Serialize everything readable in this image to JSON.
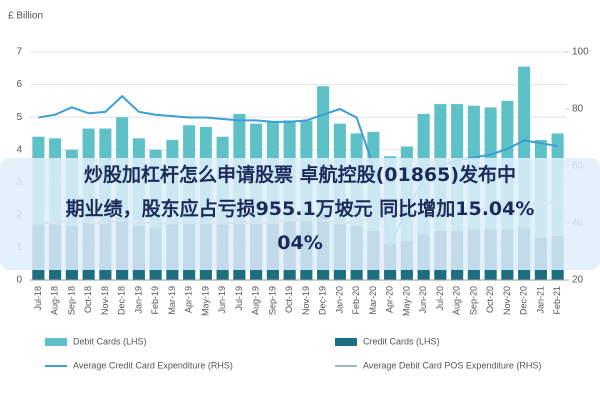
{
  "chart_data": {
    "type": "bar",
    "y_label": "£ Billion",
    "categories": [
      "Jul-18",
      "Aug-18",
      "Sep-18",
      "Oct-18",
      "Nov-18",
      "Dec-18",
      "Jan-19",
      "Feb-19",
      "Mar-19",
      "Apr-19",
      "May-19",
      "Jun-19",
      "Jul-19",
      "Aug-19",
      "Sep-19",
      "Oct-19",
      "Nov-19",
      "Dec-19",
      "Jan-20",
      "Feb-20",
      "Mar-20",
      "Apr-20",
      "May-20",
      "Jun-20",
      "Jul-20",
      "Aug-20",
      "Sep-20",
      "Oct-20",
      "Nov-20",
      "Dec-20",
      "Jan-21",
      "Feb-21"
    ],
    "series": [
      {
        "name": "Debit Cards (LHS)",
        "type": "bar",
        "color": "#5fc1c8",
        "values": [
          4.4,
          4.35,
          4.0,
          4.65,
          4.65,
          5.0,
          4.35,
          4.0,
          4.3,
          4.75,
          4.7,
          4.4,
          5.1,
          4.8,
          4.85,
          4.9,
          4.9,
          5.95,
          4.8,
          4.5,
          4.55,
          3.8,
          4.1,
          5.1,
          5.4,
          5.4,
          5.35,
          5.3,
          5.5,
          6.55,
          4.3,
          4.5
        ]
      },
      {
        "name": "Credit Cards (LHS)",
        "type": "bar",
        "color": "#1e6e82",
        "values": [
          1.7,
          1.7,
          1.65,
          1.75,
          1.75,
          1.9,
          1.65,
          1.6,
          1.7,
          1.75,
          1.75,
          1.7,
          1.8,
          1.75,
          1.75,
          1.8,
          1.8,
          2.0,
          1.7,
          1.65,
          1.5,
          1.1,
          1.2,
          1.4,
          1.5,
          1.5,
          1.55,
          1.55,
          1.55,
          1.6,
          1.3,
          1.35
        ]
      },
      {
        "name": "Average Credit Card Expenditure (RHS)",
        "type": "line",
        "axis": "y2",
        "color": "#3a9fd6",
        "values": [
          77,
          78,
          80.6,
          78.5,
          79,
          84.5,
          79,
          78,
          77.5,
          77,
          77,
          76.5,
          76,
          76,
          75.5,
          75.5,
          76,
          78,
          80,
          77,
          60,
          32,
          45,
          55,
          60,
          62,
          63,
          64,
          66,
          69,
          68,
          67
        ]
      },
      {
        "name": "Average Debit Card POS Expenditure (RHS)",
        "type": "line",
        "axis": "y2",
        "color": "#9fb3bb",
        "values": [
          40,
          40,
          41,
          40,
          40,
          41,
          40,
          40,
          40,
          40,
          40,
          40,
          40,
          40,
          40,
          41,
          41,
          41,
          40,
          40,
          42,
          46,
          47,
          46,
          45,
          45,
          45,
          45,
          46,
          46,
          47,
          47
        ]
      }
    ],
    "ylim": [
      0,
      7
    ],
    "yticks": [
      0,
      1,
      2,
      3,
      4,
      5,
      6,
      7
    ],
    "y2lim": [
      20,
      100
    ],
    "y2ticks": [
      20,
      40,
      60,
      80,
      100
    ],
    "grid": true
  },
  "overlay": {
    "lines": [
      "炒股加杠杆怎么申请股票 卓航控股(01865)发布中",
      "期业绩，股东应占亏损955.1万坡元 同比增加15.04%",
      "04%"
    ]
  }
}
